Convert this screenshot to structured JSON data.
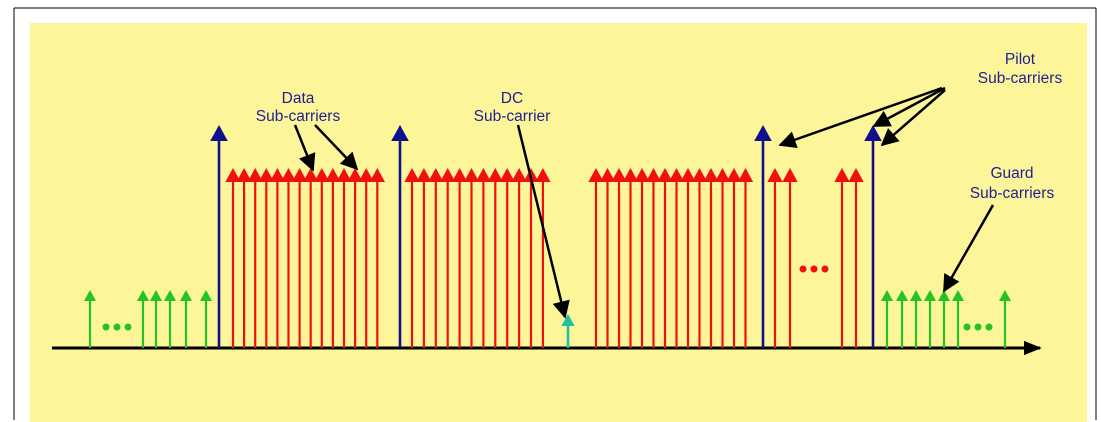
{
  "labels": {
    "data_line1": "Data",
    "data_line2": "Sub-carriers",
    "dc_line1": "DC",
    "dc_line2": "Sub-carrier",
    "pilot_line1": "Pilot",
    "pilot_line2": "Sub-carriers",
    "guard_line1": "Guard",
    "guard_line2": "Sub-carriers"
  },
  "colors": {
    "background": "#fdf59a",
    "data": "#f01010",
    "pilot": "#10108a",
    "guard": "#22c322",
    "dc": "#20c0a0",
    "axis": "#000000",
    "label": "#1f1f8f"
  },
  "subcarriers": {
    "guard_left_count": 6,
    "pilot_count": 4,
    "data_group_counts": [
      14,
      12,
      14,
      2
    ],
    "dc_count": 1,
    "guard_right_count": 7
  }
}
